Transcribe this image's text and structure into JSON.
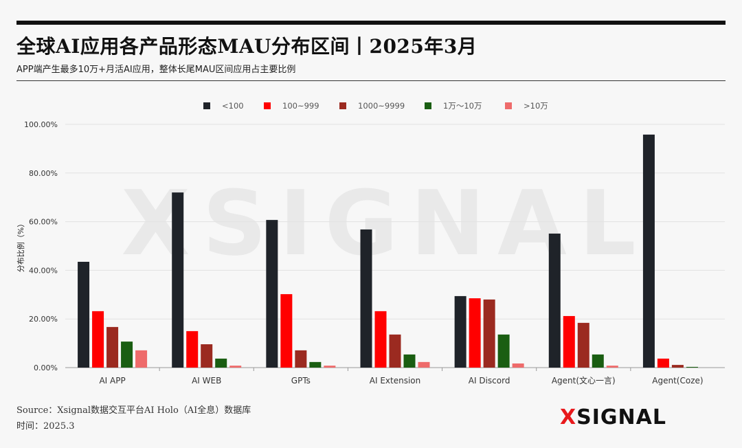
{
  "header": {
    "title": "全球AI应用各产品形态MAU分布区间丨2025年3月",
    "subtitle": "APP端产生最多10万+月活AI应用，整体长尾MAU区间应用占主要比例"
  },
  "footer": {
    "source": "Source：Xsignal数据交互平台AI Holo（AI全息）数据库",
    "date": "时间：2025.3",
    "logo_x": "X",
    "logo_text": "SIGNAL",
    "watermark": "XSIGNAL"
  },
  "chart_data": {
    "type": "bar",
    "title": "",
    "xlabel": "",
    "ylabel": "分布比例（%）",
    "ylim": [
      0,
      100
    ],
    "yticks": [
      0,
      20,
      40,
      60,
      80,
      100
    ],
    "ytick_labels": [
      "0.00%",
      "20.00%",
      "40.00%",
      "60.00%",
      "80.00%",
      "100.00%"
    ],
    "grid": true,
    "legend_position": "top",
    "categories": [
      "AI APP",
      "AI WEB",
      "GPTs",
      "AI Extension",
      "AI Discord",
      "Agent(文心一言)",
      "Agent(Coze)"
    ],
    "series": [
      {
        "name": "<100",
        "color": "#1f2329",
        "values": [
          43.5,
          72.0,
          60.7,
          56.8,
          29.4,
          55.1,
          95.8
        ]
      },
      {
        "name": "100~999",
        "color": "#ff0000",
        "values": [
          23.2,
          15.0,
          30.2,
          23.2,
          28.5,
          21.2,
          3.7
        ]
      },
      {
        "name": "1000~9999",
        "color": "#9b2a20",
        "values": [
          16.7,
          9.6,
          7.1,
          13.6,
          28.0,
          18.4,
          1.1
        ]
      },
      {
        "name": "1万～10万",
        "color": "#1a5e12",
        "values": [
          10.7,
          3.7,
          2.3,
          5.4,
          13.6,
          5.4,
          0.3
        ]
      },
      {
        "name": ">10万",
        "color": "#ee6b6b",
        "values": [
          7.1,
          0.8,
          0.8,
          2.3,
          1.7,
          0.8,
          0.0
        ]
      }
    ]
  }
}
